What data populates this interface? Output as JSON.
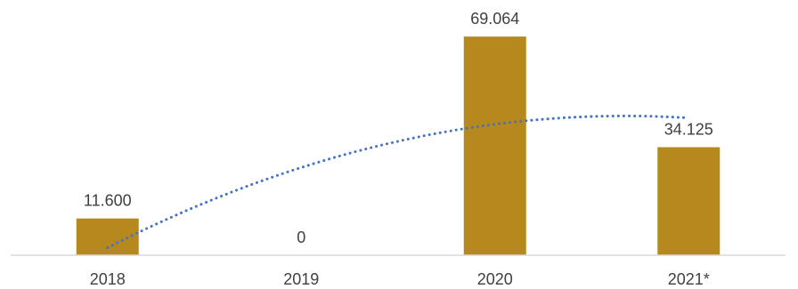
{
  "chart_data": {
    "type": "bar",
    "categories": [
      "2018",
      "2019",
      "2020",
      "2021*"
    ],
    "values": [
      11600,
      0,
      69064,
      34125
    ],
    "data_labels": [
      "11.600",
      "0",
      "69.064",
      "34.125"
    ],
    "title": "",
    "xlabel": "",
    "ylabel": "",
    "ylim": [
      0,
      75000
    ],
    "grid": false,
    "legend": "none",
    "bar_color": "#b5891e",
    "trendline": {
      "type": "polynomial",
      "style": "dotted",
      "color": "#4472c4"
    },
    "axis_color": "#d9d9d9"
  }
}
